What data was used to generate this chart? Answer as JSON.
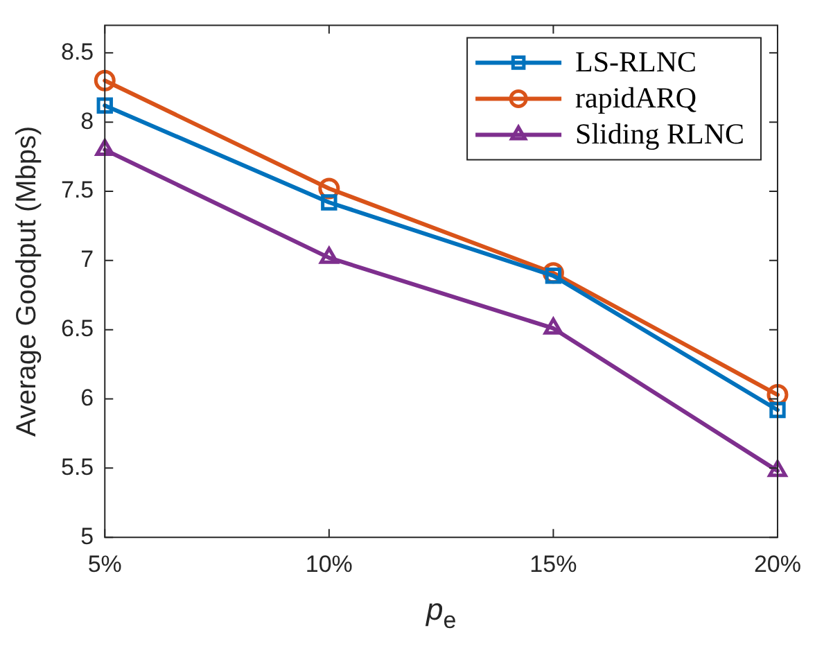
{
  "chart_data": {
    "type": "line",
    "xlabel": "p$_{e}$",
    "ylabel": "Average Goodput (Mbps)",
    "categories": [
      "5%",
      "10%",
      "15%",
      "20%"
    ],
    "ylim": [
      5,
      8.7
    ],
    "yticks": [
      5,
      5.5,
      6,
      6.5,
      7,
      7.5,
      8,
      8.5
    ],
    "grid": false,
    "legend": "top right",
    "line_style": "solid",
    "series": [
      {
        "name": "LS-RLNC",
        "color": "#0072bd",
        "marker": "square",
        "values": [
          8.12,
          7.42,
          6.89,
          5.92
        ]
      },
      {
        "name": "rapidARQ",
        "color": "#d95319",
        "marker": "circle",
        "values": [
          8.3,
          7.52,
          6.91,
          6.03
        ]
      },
      {
        "name": "Sliding RLNC",
        "color": "#7e2f8e",
        "marker": "triangle",
        "values": [
          7.8,
          7.02,
          6.51,
          5.48
        ]
      }
    ]
  }
}
